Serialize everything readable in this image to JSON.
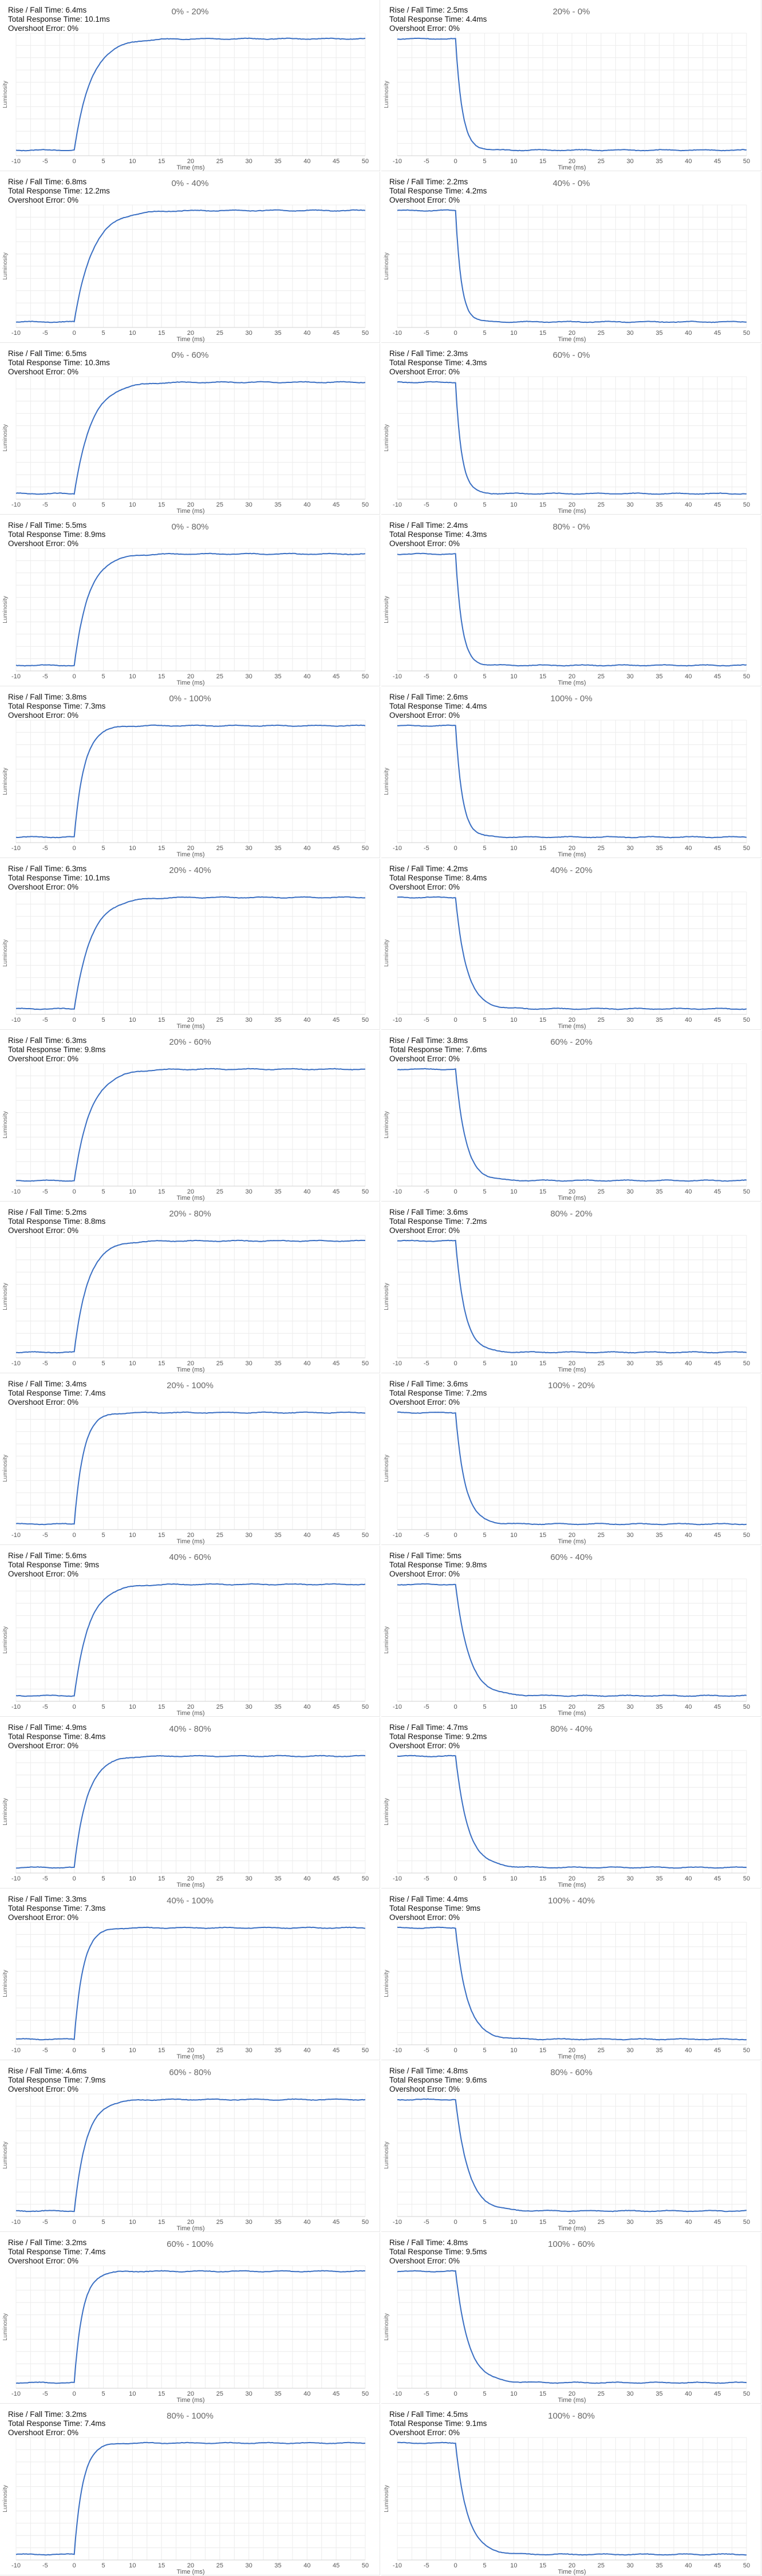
{
  "labels": {
    "rise_prefix": "Rise / Fall Time: ",
    "total_prefix": "Total Response Time: ",
    "overshoot_prefix": "Overshoot Error: ",
    "xlabel": "Time (ms)",
    "ylabel": "Luminosity"
  },
  "chart_data": [
    {
      "type": "line",
      "title": "0% - 20%",
      "direction": "rise",
      "rise_fall": "6.4ms",
      "total": "10.1ms",
      "overshoot": "0%",
      "xlim": [
        -10,
        50
      ],
      "xticks": [
        -10,
        -5,
        0,
        5,
        10,
        15,
        20,
        25,
        30,
        35,
        40,
        45,
        50
      ],
      "xlabel": "Time (ms)",
      "ylabel": "Luminosity",
      "grid": true
    },
    {
      "type": "line",
      "title": "20% - 0%",
      "direction": "fall",
      "rise_fall": "2.5ms",
      "total": "4.4ms",
      "overshoot": "0%",
      "xlim": [
        -10,
        50
      ],
      "xticks": [
        -10,
        -5,
        0,
        5,
        10,
        15,
        20,
        25,
        30,
        35,
        40,
        45,
        50
      ],
      "xlabel": "Time (ms)",
      "ylabel": "Luminosity",
      "grid": true
    },
    {
      "type": "line",
      "title": "0% - 40%",
      "direction": "rise",
      "rise_fall": "6.8ms",
      "total": "12.2ms",
      "overshoot": "0%",
      "xlim": [
        -10,
        50
      ],
      "xticks": [
        -10,
        -5,
        0,
        5,
        10,
        15,
        20,
        25,
        30,
        35,
        40,
        45,
        50
      ],
      "xlabel": "Time (ms)",
      "ylabel": "Luminosity",
      "grid": true
    },
    {
      "type": "line",
      "title": "40% - 0%",
      "direction": "fall",
      "rise_fall": "2.2ms",
      "total": "4.2ms",
      "overshoot": "0%",
      "xlim": [
        -10,
        50
      ],
      "xticks": [
        -10,
        -5,
        0,
        5,
        10,
        15,
        20,
        25,
        30,
        35,
        40,
        45,
        50
      ],
      "xlabel": "Time (ms)",
      "ylabel": "Luminosity",
      "grid": true
    },
    {
      "type": "line",
      "title": "0% - 60%",
      "direction": "rise",
      "rise_fall": "6.5ms",
      "total": "10.3ms",
      "overshoot": "0%",
      "xlim": [
        -10,
        50
      ],
      "xticks": [
        -10,
        -5,
        0,
        5,
        10,
        15,
        20,
        25,
        30,
        35,
        40,
        45,
        50
      ],
      "xlabel": "Time (ms)",
      "ylabel": "Luminosity",
      "grid": true
    },
    {
      "type": "line",
      "title": "60% - 0%",
      "direction": "fall",
      "rise_fall": "2.3ms",
      "total": "4.3ms",
      "overshoot": "0%",
      "xlim": [
        -10,
        50
      ],
      "xticks": [
        -10,
        -5,
        0,
        5,
        10,
        15,
        20,
        25,
        30,
        35,
        40,
        45,
        50
      ],
      "xlabel": "Time (ms)",
      "ylabel": "Luminosity",
      "grid": true
    },
    {
      "type": "line",
      "title": "0% - 80%",
      "direction": "rise",
      "rise_fall": "5.5ms",
      "total": "8.9ms",
      "overshoot": "0%",
      "xlim": [
        -10,
        50
      ],
      "xticks": [
        -10,
        -5,
        0,
        5,
        10,
        15,
        20,
        25,
        30,
        35,
        40,
        45,
        50
      ],
      "xlabel": "Time (ms)",
      "ylabel": "Luminosity",
      "grid": true
    },
    {
      "type": "line",
      "title": "80% - 0%",
      "direction": "fall",
      "rise_fall": "2.4ms",
      "total": "4.3ms",
      "overshoot": "0%",
      "xlim": [
        -10,
        50
      ],
      "xticks": [
        -10,
        -5,
        0,
        5,
        10,
        15,
        20,
        25,
        30,
        35,
        40,
        45,
        50
      ],
      "xlabel": "Time (ms)",
      "ylabel": "Luminosity",
      "grid": true
    },
    {
      "type": "line",
      "title": "0% - 100%",
      "direction": "rise",
      "rise_fall": "3.8ms",
      "total": "7.3ms",
      "overshoot": "0%",
      "xlim": [
        -10,
        50
      ],
      "xticks": [
        -10,
        -5,
        0,
        5,
        10,
        15,
        20,
        25,
        30,
        35,
        40,
        45,
        50
      ],
      "xlabel": "Time (ms)",
      "ylabel": "Luminosity",
      "grid": true
    },
    {
      "type": "line",
      "title": "100% - 0%",
      "direction": "fall",
      "rise_fall": "2.6ms",
      "total": "4.4ms",
      "overshoot": "0%",
      "xlim": [
        -10,
        50
      ],
      "xticks": [
        -10,
        -5,
        0,
        5,
        10,
        15,
        20,
        25,
        30,
        35,
        40,
        45,
        50
      ],
      "xlabel": "Time (ms)",
      "ylabel": "Luminosity",
      "grid": true
    },
    {
      "type": "line",
      "title": "20% - 40%",
      "direction": "rise",
      "rise_fall": "6.3ms",
      "total": "10.1ms",
      "overshoot": "0%",
      "xlim": [
        -10,
        50
      ],
      "xticks": [
        -10,
        -5,
        0,
        5,
        10,
        15,
        20,
        25,
        30,
        35,
        40,
        45,
        50
      ],
      "xlabel": "Time (ms)",
      "ylabel": "Luminosity",
      "grid": true
    },
    {
      "type": "line",
      "title": "40% - 20%",
      "direction": "fall",
      "rise_fall": "4.2ms",
      "total": "8.4ms",
      "overshoot": "0%",
      "xlim": [
        -10,
        50
      ],
      "xticks": [
        -10,
        -5,
        0,
        5,
        10,
        15,
        20,
        25,
        30,
        35,
        40,
        45,
        50
      ],
      "xlabel": "Time (ms)",
      "ylabel": "Luminosity",
      "grid": true
    },
    {
      "type": "line",
      "title": "20% - 60%",
      "direction": "rise",
      "rise_fall": "6.3ms",
      "total": "9.8ms",
      "overshoot": "0%",
      "xlim": [
        -10,
        50
      ],
      "xticks": [
        -10,
        -5,
        0,
        5,
        10,
        15,
        20,
        25,
        30,
        35,
        40,
        45,
        50
      ],
      "xlabel": "Time (ms)",
      "ylabel": "Luminosity",
      "grid": true
    },
    {
      "type": "line",
      "title": "60% - 20%",
      "direction": "fall",
      "rise_fall": "3.8ms",
      "total": "7.6ms",
      "overshoot": "0%",
      "xlim": [
        -10,
        50
      ],
      "xticks": [
        -10,
        -5,
        0,
        5,
        10,
        15,
        20,
        25,
        30,
        35,
        40,
        45,
        50
      ],
      "xlabel": "Time (ms)",
      "ylabel": "Luminosity",
      "grid": true
    },
    {
      "type": "line",
      "title": "20% - 80%",
      "direction": "rise",
      "rise_fall": "5.2ms",
      "total": "8.8ms",
      "overshoot": "0%",
      "xlim": [
        -10,
        50
      ],
      "xticks": [
        -10,
        -5,
        0,
        5,
        10,
        15,
        20,
        25,
        30,
        35,
        40,
        45,
        50
      ],
      "xlabel": "Time (ms)",
      "ylabel": "Luminosity",
      "grid": true
    },
    {
      "type": "line",
      "title": "80% - 20%",
      "direction": "fall",
      "rise_fall": "3.6ms",
      "total": "7.2ms",
      "overshoot": "0%",
      "xlim": [
        -10,
        50
      ],
      "xticks": [
        -10,
        -5,
        0,
        5,
        10,
        15,
        20,
        25,
        30,
        35,
        40,
        45,
        50
      ],
      "xlabel": "Time (ms)",
      "ylabel": "Luminosity",
      "grid": true
    },
    {
      "type": "line",
      "title": "20% - 100%",
      "direction": "rise",
      "rise_fall": "3.4ms",
      "total": "7.4ms",
      "overshoot": "0%",
      "xlim": [
        -10,
        50
      ],
      "xticks": [
        -10,
        -5,
        0,
        5,
        10,
        15,
        20,
        25,
        30,
        35,
        40,
        45,
        50
      ],
      "xlabel": "Time (ms)",
      "ylabel": "Luminosity",
      "grid": true
    },
    {
      "type": "line",
      "title": "100% - 20%",
      "direction": "fall",
      "rise_fall": "3.6ms",
      "total": "7.2ms",
      "overshoot": "0%",
      "xlim": [
        -10,
        50
      ],
      "xticks": [
        -10,
        -5,
        0,
        5,
        10,
        15,
        20,
        25,
        30,
        35,
        40,
        45,
        50
      ],
      "xlabel": "Time (ms)",
      "ylabel": "Luminosity",
      "grid": true
    },
    {
      "type": "line",
      "title": "40% - 60%",
      "direction": "rise",
      "rise_fall": "5.6ms",
      "total": "9ms",
      "overshoot": "0%",
      "xlim": [
        -10,
        50
      ],
      "xticks": [
        -10,
        -5,
        0,
        5,
        10,
        15,
        20,
        25,
        30,
        35,
        40,
        45,
        50
      ],
      "xlabel": "Time (ms)",
      "ylabel": "Luminosity",
      "grid": true
    },
    {
      "type": "line",
      "title": "60% - 40%",
      "direction": "fall",
      "rise_fall": "5ms",
      "total": "9.8ms",
      "overshoot": "0%",
      "xlim": [
        -10,
        50
      ],
      "xticks": [
        -10,
        -5,
        0,
        5,
        10,
        15,
        20,
        25,
        30,
        35,
        40,
        45,
        50
      ],
      "xlabel": "Time (ms)",
      "ylabel": "Luminosity",
      "grid": true
    },
    {
      "type": "line",
      "title": "40% - 80%",
      "direction": "rise",
      "rise_fall": "4.9ms",
      "total": "8.4ms",
      "overshoot": "0%",
      "xlim": [
        -10,
        50
      ],
      "xticks": [
        -10,
        -5,
        0,
        5,
        10,
        15,
        20,
        25,
        30,
        35,
        40,
        45,
        50
      ],
      "xlabel": "Time (ms)",
      "ylabel": "Luminosity",
      "grid": true
    },
    {
      "type": "line",
      "title": "80% - 40%",
      "direction": "fall",
      "rise_fall": "4.7ms",
      "total": "9.2ms",
      "overshoot": "0%",
      "xlim": [
        -10,
        50
      ],
      "xticks": [
        -10,
        -5,
        0,
        5,
        10,
        15,
        20,
        25,
        30,
        35,
        40,
        45,
        50
      ],
      "xlabel": "Time (ms)",
      "ylabel": "Luminosity",
      "grid": true
    },
    {
      "type": "line",
      "title": "40% - 100%",
      "direction": "rise",
      "rise_fall": "3.3ms",
      "total": "7.3ms",
      "overshoot": "0%",
      "xlim": [
        -10,
        50
      ],
      "xticks": [
        -10,
        -5,
        0,
        5,
        10,
        15,
        20,
        25,
        30,
        35,
        40,
        45,
        50
      ],
      "xlabel": "Time (ms)",
      "ylabel": "Luminosity",
      "grid": true
    },
    {
      "type": "line",
      "title": "100% - 40%",
      "direction": "fall",
      "rise_fall": "4.4ms",
      "total": "9ms",
      "overshoot": "0%",
      "xlim": [
        -10,
        50
      ],
      "xticks": [
        -10,
        -5,
        0,
        5,
        10,
        15,
        20,
        25,
        30,
        35,
        40,
        45,
        50
      ],
      "xlabel": "Time (ms)",
      "ylabel": "Luminosity",
      "grid": true
    },
    {
      "type": "line",
      "title": "60% - 80%",
      "direction": "rise",
      "rise_fall": "4.6ms",
      "total": "7.9ms",
      "overshoot": "0%",
      "xlim": [
        -10,
        50
      ],
      "xticks": [
        -10,
        -5,
        0,
        5,
        10,
        15,
        20,
        25,
        30,
        35,
        40,
        45,
        50
      ],
      "xlabel": "Time (ms)",
      "ylabel": "Luminosity",
      "grid": true
    },
    {
      "type": "line",
      "title": "80% - 60%",
      "direction": "fall",
      "rise_fall": "4.8ms",
      "total": "9.6ms",
      "overshoot": "0%",
      "xlim": [
        -10,
        50
      ],
      "xticks": [
        -10,
        -5,
        0,
        5,
        10,
        15,
        20,
        25,
        30,
        35,
        40,
        45,
        50
      ],
      "xlabel": "Time (ms)",
      "ylabel": "Luminosity",
      "grid": true
    },
    {
      "type": "line",
      "title": "60% - 100%",
      "direction": "rise",
      "rise_fall": "3.2ms",
      "total": "7.4ms",
      "overshoot": "0%",
      "xlim": [
        -10,
        50
      ],
      "xticks": [
        -10,
        -5,
        0,
        5,
        10,
        15,
        20,
        25,
        30,
        35,
        40,
        45,
        50
      ],
      "xlabel": "Time (ms)",
      "ylabel": "Luminosity",
      "grid": true
    },
    {
      "type": "line",
      "title": "100% - 60%",
      "direction": "fall",
      "rise_fall": "4.8ms",
      "total": "9.5ms",
      "overshoot": "0%",
      "xlim": [
        -10,
        50
      ],
      "xticks": [
        -10,
        -5,
        0,
        5,
        10,
        15,
        20,
        25,
        30,
        35,
        40,
        45,
        50
      ],
      "xlabel": "Time (ms)",
      "ylabel": "Luminosity",
      "grid": true
    },
    {
      "type": "line",
      "title": "80% - 100%",
      "direction": "rise",
      "rise_fall": "3.2ms",
      "total": "7.4ms",
      "overshoot": "0%",
      "xlim": [
        -10,
        50
      ],
      "xticks": [
        -10,
        -5,
        0,
        5,
        10,
        15,
        20,
        25,
        30,
        35,
        40,
        45,
        50
      ],
      "xlabel": "Time (ms)",
      "ylabel": "Luminosity",
      "grid": true
    },
    {
      "type": "line",
      "title": "100% - 80%",
      "direction": "fall",
      "rise_fall": "4.5ms",
      "total": "9.1ms",
      "overshoot": "0%",
      "xlim": [
        -10,
        50
      ],
      "xticks": [
        -10,
        -5,
        0,
        5,
        10,
        15,
        20,
        25,
        30,
        35,
        40,
        45,
        50
      ],
      "xlabel": "Time (ms)",
      "ylabel": "Luminosity",
      "grid": true
    }
  ]
}
